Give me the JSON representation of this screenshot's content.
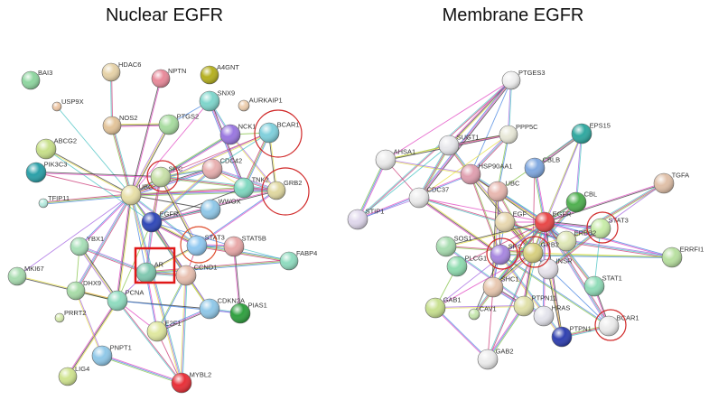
{
  "panels": [
    {
      "title": "Nuclear EGFR",
      "nodes": [
        {
          "label": "BAI3",
          "color": "#8fd6a0"
        },
        {
          "label": "HDAC6",
          "color": "#e6d2a8"
        },
        {
          "label": "NPTN",
          "color": "#e88a9a"
        },
        {
          "label": "A4GNT",
          "color": "#b5b020"
        },
        {
          "label": "SNX9",
          "color": "#7fd6cc"
        },
        {
          "label": "USP9X",
          "color": "#efc9a8"
        },
        {
          "label": "AURKAIP1",
          "color": "#efd0b0"
        },
        {
          "label": "NOS2",
          "color": "#e3c49a"
        },
        {
          "label": "PTGS2",
          "color": "#a8dca0"
        },
        {
          "label": "NCK1",
          "color": "#9a78e0"
        },
        {
          "label": "BCAR1",
          "color": "#80d0dc"
        },
        {
          "label": "ABCG2",
          "color": "#c8e08a"
        },
        {
          "label": "PIK3C3",
          "color": "#2aa0a8"
        },
        {
          "label": "SRC",
          "color": "#c8e0a8"
        },
        {
          "label": "CDC42",
          "color": "#e8b0b0"
        },
        {
          "label": "UBC",
          "color": "#e8e0a8"
        },
        {
          "label": "TNK2",
          "color": "#80d8c0"
        },
        {
          "label": "GRB2",
          "color": "#e0d8a0"
        },
        {
          "label": "TFIP11",
          "color": "#b8ece0"
        },
        {
          "label": "WWOX",
          "color": "#90c8e8"
        },
        {
          "label": "EGFR",
          "color": "#3048b8"
        },
        {
          "label": "YBX1",
          "color": "#a8e0b8"
        },
        {
          "label": "STAT3",
          "color": "#90c8f0"
        },
        {
          "label": "STAT5B",
          "color": "#e8a8a8"
        },
        {
          "label": "FABP4",
          "color": "#90dcc0"
        },
        {
          "label": "MKI67",
          "color": "#a8dcb0"
        },
        {
          "label": "AR",
          "color": "#80c8b0"
        },
        {
          "label": "CCND1",
          "color": "#e8c0b0"
        },
        {
          "label": "DHX9",
          "color": "#a8dca8"
        },
        {
          "label": "PCNA",
          "color": "#90dcc0"
        },
        {
          "label": "CDKN2A",
          "color": "#90c8e8"
        },
        {
          "label": "PIAS1",
          "color": "#30a040"
        },
        {
          "label": "PRRT2",
          "color": "#d8ecb0"
        },
        {
          "label": "E2F1",
          "color": "#e0e8a0"
        },
        {
          "label": "PNPT1",
          "color": "#90c8e8"
        },
        {
          "label": "LIG4",
          "color": "#d0e490"
        },
        {
          "label": "MYBL2",
          "color": "#e83038"
        }
      ],
      "highlight_square": "AR",
      "highlight_circles": [
        "BCAR1",
        "GRB2",
        "STAT3",
        "SRC"
      ],
      "edges": [
        [
          "UBC",
          "EGFR"
        ],
        [
          "UBC",
          "SRC"
        ],
        [
          "UBC",
          "PCNA"
        ],
        [
          "UBC",
          "AR"
        ],
        [
          "UBC",
          "STAT3"
        ],
        [
          "UBC",
          "CDC42"
        ],
        [
          "UBC",
          "NCK1"
        ],
        [
          "UBC",
          "BCAR1"
        ],
        [
          "UBC",
          "GRB2"
        ],
        [
          "UBC",
          "PIK3C3"
        ],
        [
          "UBC",
          "ABCG2"
        ],
        [
          "UBC",
          "TFIP11"
        ],
        [
          "UBC",
          "USP9X"
        ],
        [
          "UBC",
          "NPTN"
        ],
        [
          "UBC",
          "NOS2"
        ],
        [
          "UBC",
          "MKI67"
        ],
        [
          "UBC",
          "YBX1"
        ],
        [
          "UBC",
          "DHX9"
        ],
        [
          "UBC",
          "CCND1"
        ],
        [
          "UBC",
          "CDKN2A"
        ],
        [
          "UBC",
          "MYBL2"
        ],
        [
          "UBC",
          "WWOX"
        ],
        [
          "UBC",
          "TNK2"
        ],
        [
          "UBC",
          "PTGS2"
        ],
        [
          "UBC",
          "SNX9"
        ],
        [
          "HDAC6",
          "NOS2"
        ],
        [
          "NOS2",
          "PTGS2"
        ],
        [
          "PTGS2",
          "SNX9"
        ],
        [
          "SNX9",
          "NCK1"
        ],
        [
          "SNX9",
          "TNK2"
        ],
        [
          "NCK1",
          "BCAR1"
        ],
        [
          "NCK1",
          "GRB2"
        ],
        [
          "NCK1",
          "SRC"
        ],
        [
          "BCAR1",
          "SRC"
        ],
        [
          "BCAR1",
          "GRB2"
        ],
        [
          "BCAR1",
          "TNK2"
        ],
        [
          "BCAR1",
          "CDC42"
        ],
        [
          "GRB2",
          "EGFR"
        ],
        [
          "GRB2",
          "SRC"
        ],
        [
          "GRB2",
          "TNK2"
        ],
        [
          "GRB2",
          "STAT3"
        ],
        [
          "GRB2",
          "CDC42"
        ],
        [
          "CDC42",
          "TNK2"
        ],
        [
          "CDC42",
          "SRC"
        ],
        [
          "CDC42",
          "EGFR"
        ],
        [
          "TNK2",
          "EGFR"
        ],
        [
          "SRC",
          "EGFR"
        ],
        [
          "SRC",
          "STAT3"
        ],
        [
          "SRC",
          "AR"
        ],
        [
          "WWOX",
          "EGFR"
        ],
        [
          "EGFR",
          "STAT3"
        ],
        [
          "EGFR",
          "STAT5B"
        ],
        [
          "EGFR",
          "AR"
        ],
        [
          "EGFR",
          "CCND1"
        ],
        [
          "EGFR",
          "PCNA"
        ],
        [
          "EGFR",
          "CDKN2A"
        ],
        [
          "STAT3",
          "STAT5B"
        ],
        [
          "STAT3",
          "CCND1"
        ],
        [
          "STAT3",
          "AR"
        ],
        [
          "STAT3",
          "FABP4"
        ],
        [
          "STAT5B",
          "FABP4"
        ],
        [
          "STAT5B",
          "PIAS1"
        ],
        [
          "AR",
          "CCND1"
        ],
        [
          "AR",
          "PCNA"
        ],
        [
          "AR",
          "E2F1"
        ],
        [
          "AR",
          "YBX1"
        ],
        [
          "CCND1",
          "CDKN2A"
        ],
        [
          "CCND1",
          "E2F1"
        ],
        [
          "CCND1",
          "MYBL2"
        ],
        [
          "PCNA",
          "CDKN2A"
        ],
        [
          "PCNA",
          "DHX9"
        ],
        [
          "PCNA",
          "YBX1"
        ],
        [
          "PCNA",
          "E2F1"
        ],
        [
          "PCNA",
          "MYBL2"
        ],
        [
          "PCNA",
          "LIG4"
        ],
        [
          "PCNA",
          "PIAS1"
        ],
        [
          "CDKN2A",
          "PIAS1"
        ],
        [
          "CDKN2A",
          "E2F1"
        ],
        [
          "DHX9",
          "YBX1"
        ],
        [
          "DHX9",
          "PNPT1"
        ],
        [
          "PNPT1",
          "MYBL2"
        ],
        [
          "E2F1",
          "MYBL2"
        ],
        [
          "MKI67",
          "PCNA"
        ],
        [
          "FABP4",
          "AR"
        ],
        [
          "ABCG2",
          "EGFR"
        ],
        [
          "PIK3C3",
          "SRC"
        ]
      ]
    },
    {
      "title": "Membrane EGFR",
      "nodes": [
        {
          "label": "PTGES3",
          "color": "#f0f0f0"
        },
        {
          "label": "PPP5C",
          "color": "#e8e8d8"
        },
        {
          "label": "EPS15",
          "color": "#30a8a0"
        },
        {
          "label": "SUGT1",
          "color": "#e8e8ec"
        },
        {
          "label": "AHSA1",
          "color": "#ececec"
        },
        {
          "label": "CBLB",
          "color": "#80a8e0"
        },
        {
          "label": "HSP90AA1",
          "color": "#e0a0b0"
        },
        {
          "label": "TGFA",
          "color": "#e0c0a8"
        },
        {
          "label": "UBC",
          "color": "#e8b8b0"
        },
        {
          "label": "CDC37",
          "color": "#ececec"
        },
        {
          "label": "CBL",
          "color": "#50b050"
        },
        {
          "label": "STIP1",
          "color": "#e0d8ec"
        },
        {
          "label": "EGF",
          "color": "#e8d8b0"
        },
        {
          "label": "EGFR",
          "color": "#e84848"
        },
        {
          "label": "STAT3",
          "color": "#c8eca8"
        },
        {
          "label": "ERBB2",
          "color": "#e0e8b8"
        },
        {
          "label": "SOS1",
          "color": "#a8dcb0"
        },
        {
          "label": "SRC",
          "color": "#a888e0"
        },
        {
          "label": "GRB2",
          "color": "#d8d080"
        },
        {
          "label": "INSR",
          "color": "#e8e4ec"
        },
        {
          "label": "ERRFI1",
          "color": "#b8e0a0"
        },
        {
          "label": "PLCG1",
          "color": "#90dcb0"
        },
        {
          "label": "SHC1",
          "color": "#e8c8b0"
        },
        {
          "label": "STAT1",
          "color": "#90dcb8"
        },
        {
          "label": "PTPN11",
          "color": "#e0e0a8"
        },
        {
          "label": "GAB1",
          "color": "#c8e090"
        },
        {
          "label": "CAV1",
          "color": "#c8e8b0"
        },
        {
          "label": "HRAS",
          "color": "#e4e4ec"
        },
        {
          "label": "BCAR1",
          "color": "#ececec"
        },
        {
          "label": "PTPN1",
          "color": "#3040b0"
        },
        {
          "label": "GAB2",
          "color": "#ececec"
        }
      ],
      "highlight_circles": [
        "STAT3",
        "BCAR1",
        "GRB2",
        "SRC"
      ],
      "edges": [
        [
          "PTGES3",
          "AHSA1"
        ],
        [
          "PTGES3",
          "STIP1"
        ],
        [
          "PTGES3",
          "SUGT1"
        ],
        [
          "PTGES3",
          "HSP90AA1"
        ],
        [
          "PTGES3",
          "PPP5C"
        ],
        [
          "PTGES3",
          "CDC37"
        ],
        [
          "AHSA1",
          "SUGT1"
        ],
        [
          "AHSA1",
          "HSP90AA1"
        ],
        [
          "AHSA1",
          "STIP1"
        ],
        [
          "AHSA1",
          "CDC37"
        ],
        [
          "AHSA1",
          "PPP5C"
        ],
        [
          "SUGT1",
          "HSP90AA1"
        ],
        [
          "SUGT1",
          "STIP1"
        ],
        [
          "SUGT1",
          "PPP5C"
        ],
        [
          "SUGT1",
          "CDC37"
        ],
        [
          "STIP1",
          "CDC37"
        ],
        [
          "STIP1",
          "HSP90AA1"
        ],
        [
          "PPP5C",
          "HSP90AA1"
        ],
        [
          "PPP5C",
          "CDC37"
        ],
        [
          "PPP5C",
          "UBC"
        ],
        [
          "HSP90AA1",
          "EGFR"
        ],
        [
          "HSP90AA1",
          "ERBB2"
        ],
        [
          "HSP90AA1",
          "SRC"
        ],
        [
          "HSP90AA1",
          "INSR"
        ],
        [
          "CDC37",
          "EGFR"
        ],
        [
          "CDC37",
          "ERBB2"
        ],
        [
          "CDC37",
          "SRC"
        ],
        [
          "EPS15",
          "EGFR"
        ],
        [
          "EPS15",
          "CBL"
        ],
        [
          "EPS15",
          "CBLB"
        ],
        [
          "EPS15",
          "UBC"
        ],
        [
          "EPS15",
          "GRB2"
        ],
        [
          "CBLB",
          "EGFR"
        ],
        [
          "CBLB",
          "GRB2"
        ],
        [
          "CBL",
          "EGFR"
        ],
        [
          "CBL",
          "GRB2"
        ],
        [
          "CBL",
          "SRC"
        ],
        [
          "TGFA",
          "EGFR"
        ],
        [
          "TGFA",
          "ERBB2"
        ],
        [
          "TGFA",
          "STAT3"
        ],
        [
          "ERRFI1",
          "EGFR"
        ],
        [
          "ERRFI1",
          "ERBB2"
        ],
        [
          "ERRFI1",
          "GRB2"
        ],
        [
          "ERRFI1",
          "SRC"
        ],
        [
          "UBC",
          "EGFR"
        ],
        [
          "UBC",
          "SRC"
        ],
        [
          "UBC",
          "GRB2"
        ],
        [
          "UBC",
          "SHC1"
        ],
        [
          "EGF",
          "EGFR"
        ],
        [
          "EGF",
          "ERBB2"
        ],
        [
          "EGF",
          "GRB2"
        ],
        [
          "EGF",
          "SHC1"
        ],
        [
          "EGFR",
          "ERBB2"
        ],
        [
          "EGFR",
          "STAT3"
        ],
        [
          "EGFR",
          "GRB2"
        ],
        [
          "EGFR",
          "SRC"
        ],
        [
          "EGFR",
          "SHC1"
        ],
        [
          "EGFR",
          "PLCG1"
        ],
        [
          "EGFR",
          "SOS1"
        ],
        [
          "EGFR",
          "STAT1"
        ],
        [
          "EGFR",
          "PTPN11"
        ],
        [
          "EGFR",
          "PTPN1"
        ],
        [
          "EGFR",
          "CAV1"
        ],
        [
          "EGFR",
          "GAB1"
        ],
        [
          "EGFR",
          "HRAS"
        ],
        [
          "EGFR",
          "BCAR1"
        ],
        [
          "SRC",
          "STAT3"
        ],
        [
          "SRC",
          "BCAR1"
        ],
        [
          "SRC",
          "PTPN1"
        ],
        [
          "SRC",
          "CAV1"
        ],
        [
          "GRB2",
          "SOS1"
        ],
        [
          "GRB2",
          "SHC1"
        ],
        [
          "GRB2",
          "GAB1"
        ],
        [
          "GRB2",
          "GAB2"
        ],
        [
          "GRB2",
          "PTPN11"
        ],
        [
          "GRB2",
          "BCAR1"
        ],
        [
          "SOS1",
          "HRAS"
        ],
        [
          "SHC1",
          "PTPN11"
        ],
        [
          "PLCG1",
          "GAB1"
        ],
        [
          "GAB1",
          "PTPN11"
        ],
        [
          "GAB2",
          "PTPN11"
        ],
        [
          "GAB2",
          "SHC1"
        ],
        [
          "INSR",
          "PTPN1"
        ],
        [
          "INSR",
          "STAT3"
        ],
        [
          "STAT3",
          "STAT1"
        ],
        [
          "STAT1",
          "BCAR1"
        ],
        [
          "PTPN1",
          "BCAR1"
        ],
        [
          "HRAS",
          "PTPN11"
        ],
        [
          "GAB2",
          "GAB1"
        ]
      ]
    }
  ],
  "edge_colors": [
    "#e040c0",
    "#c83070",
    "#e8e040",
    "#4080e0",
    "#40c0c0",
    "#303030",
    "#80c040",
    "#a060e0"
  ]
}
